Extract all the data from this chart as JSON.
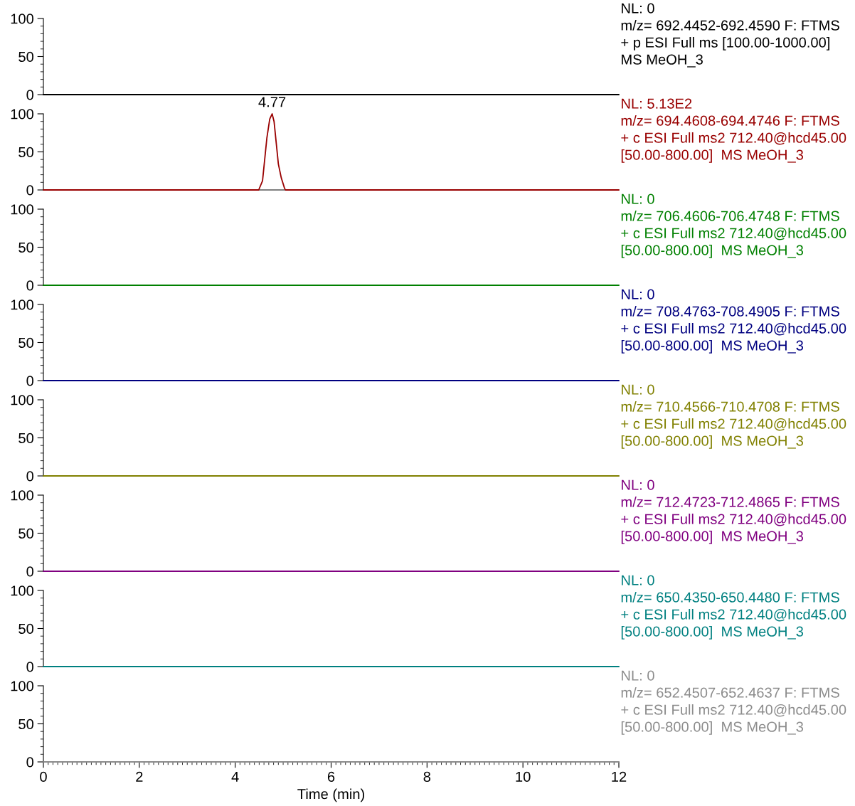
{
  "chart_data": [
    {
      "type": "line",
      "xlim": [
        0,
        12
      ],
      "xticks": [
        0,
        2,
        4,
        6,
        8,
        10,
        12
      ],
      "ylim": [
        0,
        100
      ],
      "yticks": [
        0,
        50,
        100
      ],
      "tick_labels": "y",
      "series": [
        {
          "color": "#000000",
          "x": [
            0,
            12
          ],
          "values": [
            0,
            0
          ]
        }
      ],
      "annotations": [
        "NL: 0",
        "m/z= 692.4452-692.4590 F: FTMS",
        "+ p ESI Full ms [100.00-1000.00]",
        "MS MeOH_3"
      ]
    },
    {
      "type": "line",
      "xlim": [
        0,
        12
      ],
      "xticks": [
        0,
        2,
        4,
        6,
        8,
        10,
        12
      ],
      "ylim": [
        0,
        100
      ],
      "yticks": [
        0,
        50,
        100
      ],
      "tick_labels": "y",
      "series": [
        {
          "color": "#990000",
          "x": [
            0,
            4.49,
            4.57,
            4.66,
            4.72,
            4.77,
            4.81,
            4.9,
            4.96,
            5.03,
            5.05,
            12
          ],
          "values": [
            0,
            0,
            12,
            68,
            93,
            100,
            90,
            34,
            16,
            2,
            0,
            0
          ]
        }
      ],
      "annotations": [
        "NL: 5.13E2",
        "m/z= 694.4608-694.4746 F: FTMS",
        "+ c ESI Full ms2 712.40@hcd45.00",
        "[50.00-800.00]  MS MeOH_3",
        {
          "text": "4.77",
          "x": 4.77,
          "y": 100
        }
      ]
    },
    {
      "type": "line",
      "xlim": [
        0,
        12
      ],
      "xticks": [
        0,
        2,
        4,
        6,
        8,
        10,
        12
      ],
      "ylim": [
        0,
        100
      ],
      "yticks": [
        0,
        50,
        100
      ],
      "tick_labels": "y",
      "series": [
        {
          "color": "#008000",
          "x": [
            0,
            12
          ],
          "values": [
            0,
            0
          ]
        }
      ],
      "annotations": [
        "NL: 0",
        "m/z= 706.4606-706.4748 F: FTMS",
        "+ c ESI Full ms2 712.40@hcd45.00",
        "[50.00-800.00]  MS MeOH_3"
      ]
    },
    {
      "type": "line",
      "xlim": [
        0,
        12
      ],
      "xticks": [
        0,
        2,
        4,
        6,
        8,
        10,
        12
      ],
      "ylim": [
        0,
        100
      ],
      "yticks": [
        0,
        50,
        100
      ],
      "tick_labels": "y",
      "series": [
        {
          "color": "#000080",
          "x": [
            0,
            12
          ],
          "values": [
            0,
            0
          ]
        }
      ],
      "annotations": [
        "NL: 0",
        "m/z= 708.4763-708.4905 F: FTMS",
        "+ c ESI Full ms2 712.40@hcd45.00",
        "[50.00-800.00]  MS MeOH_3"
      ]
    },
    {
      "type": "line",
      "xlim": [
        0,
        12
      ],
      "xticks": [
        0,
        2,
        4,
        6,
        8,
        10,
        12
      ],
      "ylim": [
        0,
        100
      ],
      "yticks": [
        0,
        50,
        100
      ],
      "tick_labels": "y",
      "series": [
        {
          "color": "#808000",
          "x": [
            0,
            12
          ],
          "values": [
            0,
            0
          ]
        }
      ],
      "annotations": [
        "NL: 0",
        "m/z= 710.4566-710.4708 F: FTMS",
        "+ c ESI Full ms2 712.40@hcd45.00",
        "[50.00-800.00]  MS MeOH_3"
      ]
    },
    {
      "type": "line",
      "xlim": [
        0,
        12
      ],
      "xticks": [
        0,
        2,
        4,
        6,
        8,
        10,
        12
      ],
      "ylim": [
        0,
        100
      ],
      "yticks": [
        0,
        50,
        100
      ],
      "tick_labels": "y",
      "series": [
        {
          "color": "#800080",
          "x": [
            0,
            12
          ],
          "values": [
            0,
            0
          ]
        }
      ],
      "annotations": [
        "NL: 0",
        "m/z= 712.4723-712.4865 F: FTMS",
        "+ c ESI Full ms2 712.40@hcd45.00",
        "[50.00-800.00]  MS MeOH_3"
      ]
    },
    {
      "type": "line",
      "xlim": [
        0,
        12
      ],
      "xticks": [
        0,
        2,
        4,
        6,
        8,
        10,
        12
      ],
      "ylim": [
        0,
        100
      ],
      "yticks": [
        0,
        50,
        100
      ],
      "tick_labels": "y",
      "series": [
        {
          "color": "#008080",
          "x": [
            0,
            12
          ],
          "values": [
            0,
            0
          ]
        }
      ],
      "annotations": [
        "NL: 0",
        "m/z= 650.4350-650.4480 F: FTMS",
        "+ c ESI Full ms2 712.40@hcd45.00",
        "[50.00-800.00]  MS MeOH_3"
      ]
    },
    {
      "type": "line",
      "xlim": [
        0,
        12
      ],
      "xticks": [
        0,
        2,
        4,
        6,
        8,
        10,
        12
      ],
      "ylim": [
        0,
        100
      ],
      "yticks": [
        0,
        50,
        100
      ],
      "xlabel": "Time (min)",
      "series": [
        {
          "color": "#8c8c8c",
          "x": [
            0,
            12
          ],
          "values": [
            0,
            0
          ]
        }
      ],
      "annotations": [
        "NL: 0",
        "m/z= 652.4507-652.4637 F: FTMS",
        "+ c ESI Full ms2 712.40@hcd45.00",
        "[50.00-800.00]  MS MeOH_3"
      ]
    }
  ]
}
